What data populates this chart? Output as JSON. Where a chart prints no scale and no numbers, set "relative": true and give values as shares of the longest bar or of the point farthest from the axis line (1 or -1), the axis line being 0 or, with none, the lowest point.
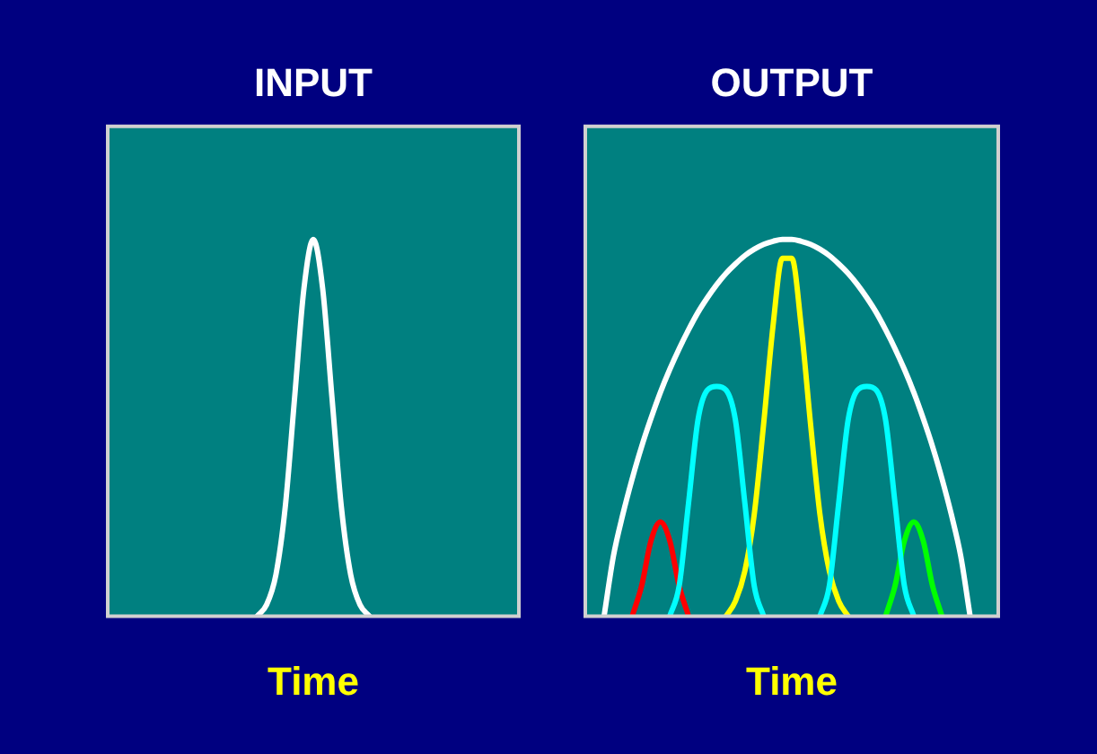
{
  "chart_data": [
    {
      "type": "line",
      "title": "INPUT",
      "xlabel": "Time",
      "relative": true,
      "legend": false,
      "marker": "none",
      "categories": [
        null,
        null,
        null,
        null,
        null,
        null,
        null,
        null,
        null,
        null,
        null,
        null,
        null,
        null,
        null,
        null,
        null,
        null,
        null,
        null,
        null,
        null,
        null,
        null,
        null,
        null,
        null,
        null,
        null,
        null,
        null,
        null,
        null,
        null,
        null,
        null,
        null,
        null,
        null,
        null,
        null,
        null,
        null,
        null,
        null
      ],
      "series": [
        {
          "color": "#ffffff",
          "values": [
            null,
            null,
            null,
            null,
            null,
            null,
            null,
            null,
            null,
            null,
            null,
            null,
            null,
            null,
            null,
            null,
            0,
            0.03,
            0.11,
            0.29,
            0.58,
            0.87,
            1,
            0.87,
            0.58,
            0.29,
            0.11,
            0.03,
            0,
            null,
            null,
            null,
            null,
            null,
            null,
            null,
            null,
            null,
            null,
            null,
            null,
            null,
            null,
            null,
            null
          ]
        }
      ]
    },
    {
      "type": "line",
      "title": "OUTPUT",
      "xlabel": "Time",
      "relative": true,
      "legend": false,
      "marker": "none",
      "categories": [
        null,
        null,
        null,
        null,
        null,
        null,
        null,
        null,
        null,
        null,
        null,
        null,
        null,
        null,
        null,
        null,
        null,
        null,
        null,
        null,
        null,
        null,
        null,
        null,
        null,
        null,
        null,
        null,
        null,
        null,
        null,
        null,
        null,
        null,
        null,
        null,
        null,
        null,
        null,
        null,
        null,
        null,
        null,
        null,
        null
      ],
      "series": [
        {
          "color": "#ffffff",
          "values": [
            null,
            null,
            0,
            0.16,
            0.27,
            0.365,
            0.45,
            0.525,
            0.594,
            0.655,
            0.71,
            0.76,
            0.806,
            0.845,
            0.88,
            0.91,
            0.935,
            0.957,
            0.974,
            0.987,
            0.995,
            1,
            1,
            0.995,
            0.987,
            0.974,
            0.957,
            0.935,
            0.91,
            0.88,
            0.845,
            0.806,
            0.76,
            0.71,
            0.655,
            0.594,
            0.525,
            0.45,
            0.365,
            0.27,
            0.16,
            0,
            null,
            null,
            null
          ]
        },
        {
          "color": "#00ffff",
          "values": [
            null,
            null,
            null,
            null,
            null,
            null,
            null,
            null,
            null,
            0,
            0.08,
            0.3,
            0.52,
            0.6,
            0.61,
            0.6,
            0.52,
            0.3,
            0.08,
            0,
            null,
            null,
            null,
            null,
            null,
            null,
            null,
            null,
            null,
            null,
            null,
            null,
            null,
            null,
            null,
            null,
            null,
            null,
            null,
            null,
            null,
            null,
            null,
            null,
            null
          ]
        },
        {
          "color": "#00ffff",
          "values": [
            null,
            null,
            null,
            null,
            null,
            null,
            null,
            null,
            null,
            null,
            null,
            null,
            null,
            null,
            null,
            null,
            null,
            null,
            null,
            null,
            null,
            null,
            null,
            null,
            null,
            0,
            0.08,
            0.3,
            0.52,
            0.6,
            0.61,
            0.6,
            0.52,
            0.3,
            0.08,
            0,
            null,
            null,
            null,
            null,
            null,
            null,
            null,
            null,
            null
          ]
        },
        {
          "color": "#ff0000",
          "values": [
            null,
            null,
            null,
            null,
            null,
            0,
            0.08,
            0.2,
            0.25,
            0.2,
            0.08,
            0,
            null,
            null,
            null,
            null,
            null,
            null,
            null,
            null,
            null,
            null,
            null,
            null,
            null,
            null,
            null,
            null,
            null,
            null,
            null,
            null,
            null,
            null,
            null,
            null,
            null,
            null,
            null,
            null,
            null,
            null,
            null,
            null,
            null
          ]
        },
        {
          "color": "#00ff00",
          "values": [
            null,
            null,
            null,
            null,
            null,
            null,
            null,
            null,
            null,
            null,
            null,
            null,
            null,
            null,
            null,
            null,
            null,
            null,
            null,
            null,
            null,
            null,
            null,
            null,
            null,
            null,
            null,
            null,
            null,
            null,
            null,
            null,
            0,
            0.08,
            0.2,
            0.25,
            0.2,
            0.08,
            0,
            null,
            null,
            null,
            null,
            null,
            null
          ]
        },
        {
          "color": "#ffff00",
          "values": [
            null,
            null,
            null,
            null,
            null,
            null,
            null,
            null,
            null,
            null,
            null,
            null,
            null,
            null,
            null,
            0,
            0.04,
            0.12,
            0.27,
            0.51,
            0.77,
            0.95,
            0.95,
            0.77,
            0.51,
            0.27,
            0.12,
            0.04,
            0,
            null,
            null,
            null,
            null,
            null,
            null,
            null,
            null,
            null,
            null,
            null,
            null,
            null,
            null,
            null,
            null
          ]
        }
      ]
    }
  ]
}
